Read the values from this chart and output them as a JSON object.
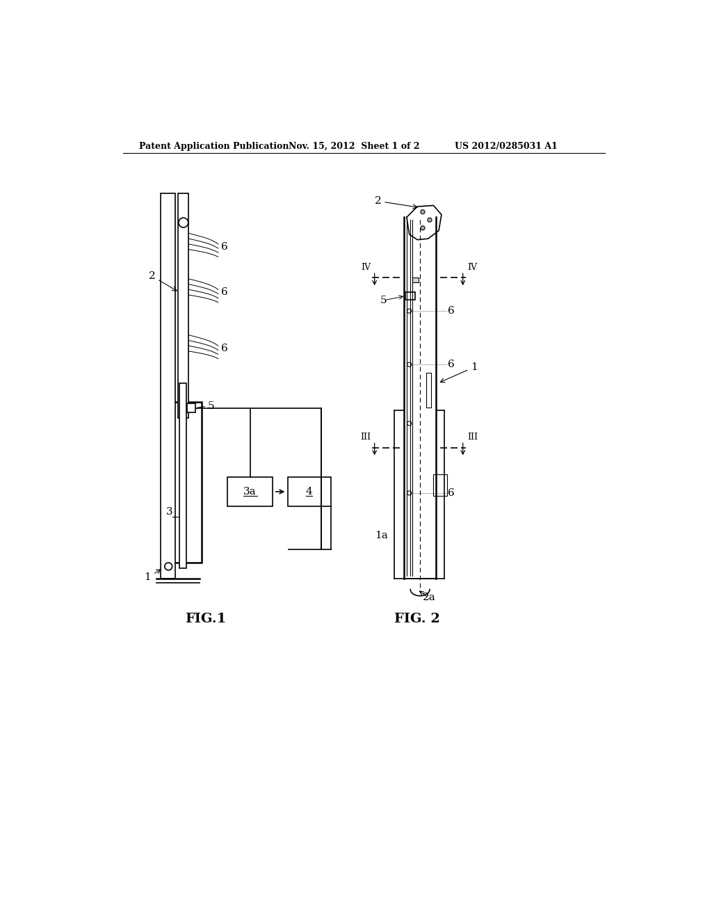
{
  "background_color": "#ffffff",
  "header_text": "Patent Application Publication",
  "header_date": "Nov. 15, 2012  Sheet 1 of 2",
  "header_patent": "US 2012/0285031 A1",
  "fig1_label": "FIG.1",
  "fig2_label": "FIG. 2"
}
